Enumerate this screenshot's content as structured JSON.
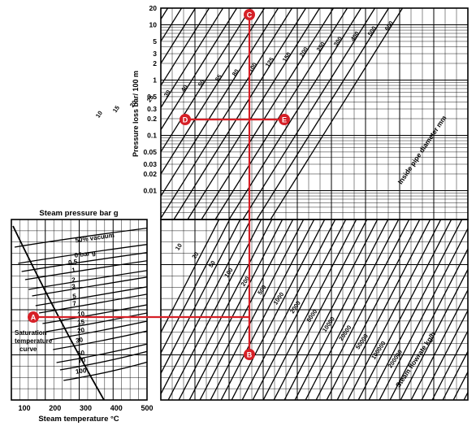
{
  "chart_data": {
    "type": "nomogram",
    "title": "",
    "left_panel": {
      "title": "Steam pressure bar g",
      "xlabel": "Steam temperature °C",
      "xticks": [
        "100",
        "200",
        "300",
        "400",
        "500"
      ],
      "xlim": [
        100,
        500
      ],
      "pressure_labels": [
        "50% vacuum",
        "0 bar g",
        "0.5",
        "1",
        "2",
        "3",
        "5",
        "7",
        "10",
        "15",
        "20",
        "30",
        "50",
        "70",
        "100"
      ],
      "curve_label": [
        "Saturation",
        "temperature",
        "curve"
      ]
    },
    "upper_panel": {
      "ylabel": "Pressure loss bar/ 100 m",
      "yticks": [
        "20",
        "10",
        "5",
        "3",
        "2",
        "1",
        "0.5",
        "0.3",
        "0.2",
        "0.1",
        "0.05",
        "0.03",
        "0.02",
        "0.01"
      ],
      "ylim": [
        0.003,
        20
      ],
      "yscale": "log",
      "diameter_labels": [
        "10",
        "15",
        "20",
        "25",
        "30",
        "40",
        "50",
        "65",
        "80",
        "100",
        "125",
        "150",
        "200",
        "250",
        "300",
        "400",
        "500",
        "600"
      ],
      "diameter_axis_label": "Inside pipe diameter mm"
    },
    "lower_panel": {
      "flowrate_labels": [
        "10",
        "20",
        "50",
        "100",
        "200",
        "500",
        "1000",
        "2000",
        "5000",
        "10000",
        "20000",
        "50000",
        "100000",
        "200000"
      ],
      "flowrate_axis_label": "Steam flowrate kg/h"
    },
    "markers": [
      "A",
      "B",
      "C",
      "D",
      "E"
    ],
    "colors": {
      "line": "#000000",
      "example": "#d62027",
      "background": "#ffffff"
    }
  }
}
